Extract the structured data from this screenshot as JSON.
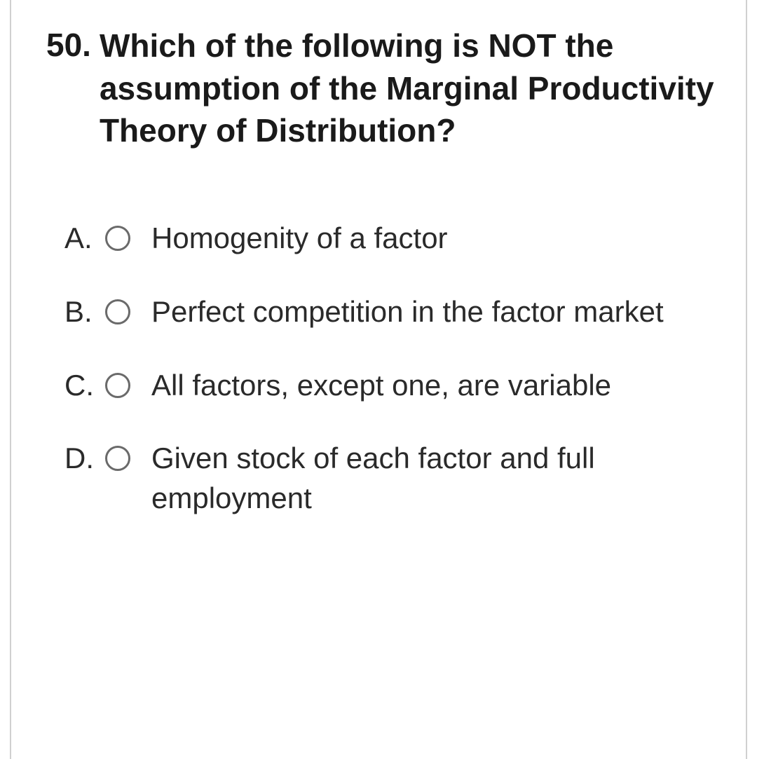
{
  "question": {
    "number": "50.",
    "text": "Which of the following is NOT the assumption of the Marginal Productivity Theory of Distribution?"
  },
  "options": [
    {
      "letter": "A.",
      "text": "Homogenity of a factor"
    },
    {
      "letter": "B.",
      "text": "Perfect competition in the factor market"
    },
    {
      "letter": "C.",
      "text": "All factors, except one, are variable"
    },
    {
      "letter": "D.",
      "text": "Given stock of each factor and full employment"
    }
  ],
  "colors": {
    "text_primary": "#1a1a1a",
    "text_secondary": "#2a2a2a",
    "radio_border": "#6a6a6a",
    "border": "#d0d0d0",
    "background": "#ffffff"
  },
  "typography": {
    "question_fontsize": 46,
    "question_fontweight": 700,
    "option_fontsize": 42,
    "option_fontweight": 400,
    "font_family": "Arial"
  }
}
